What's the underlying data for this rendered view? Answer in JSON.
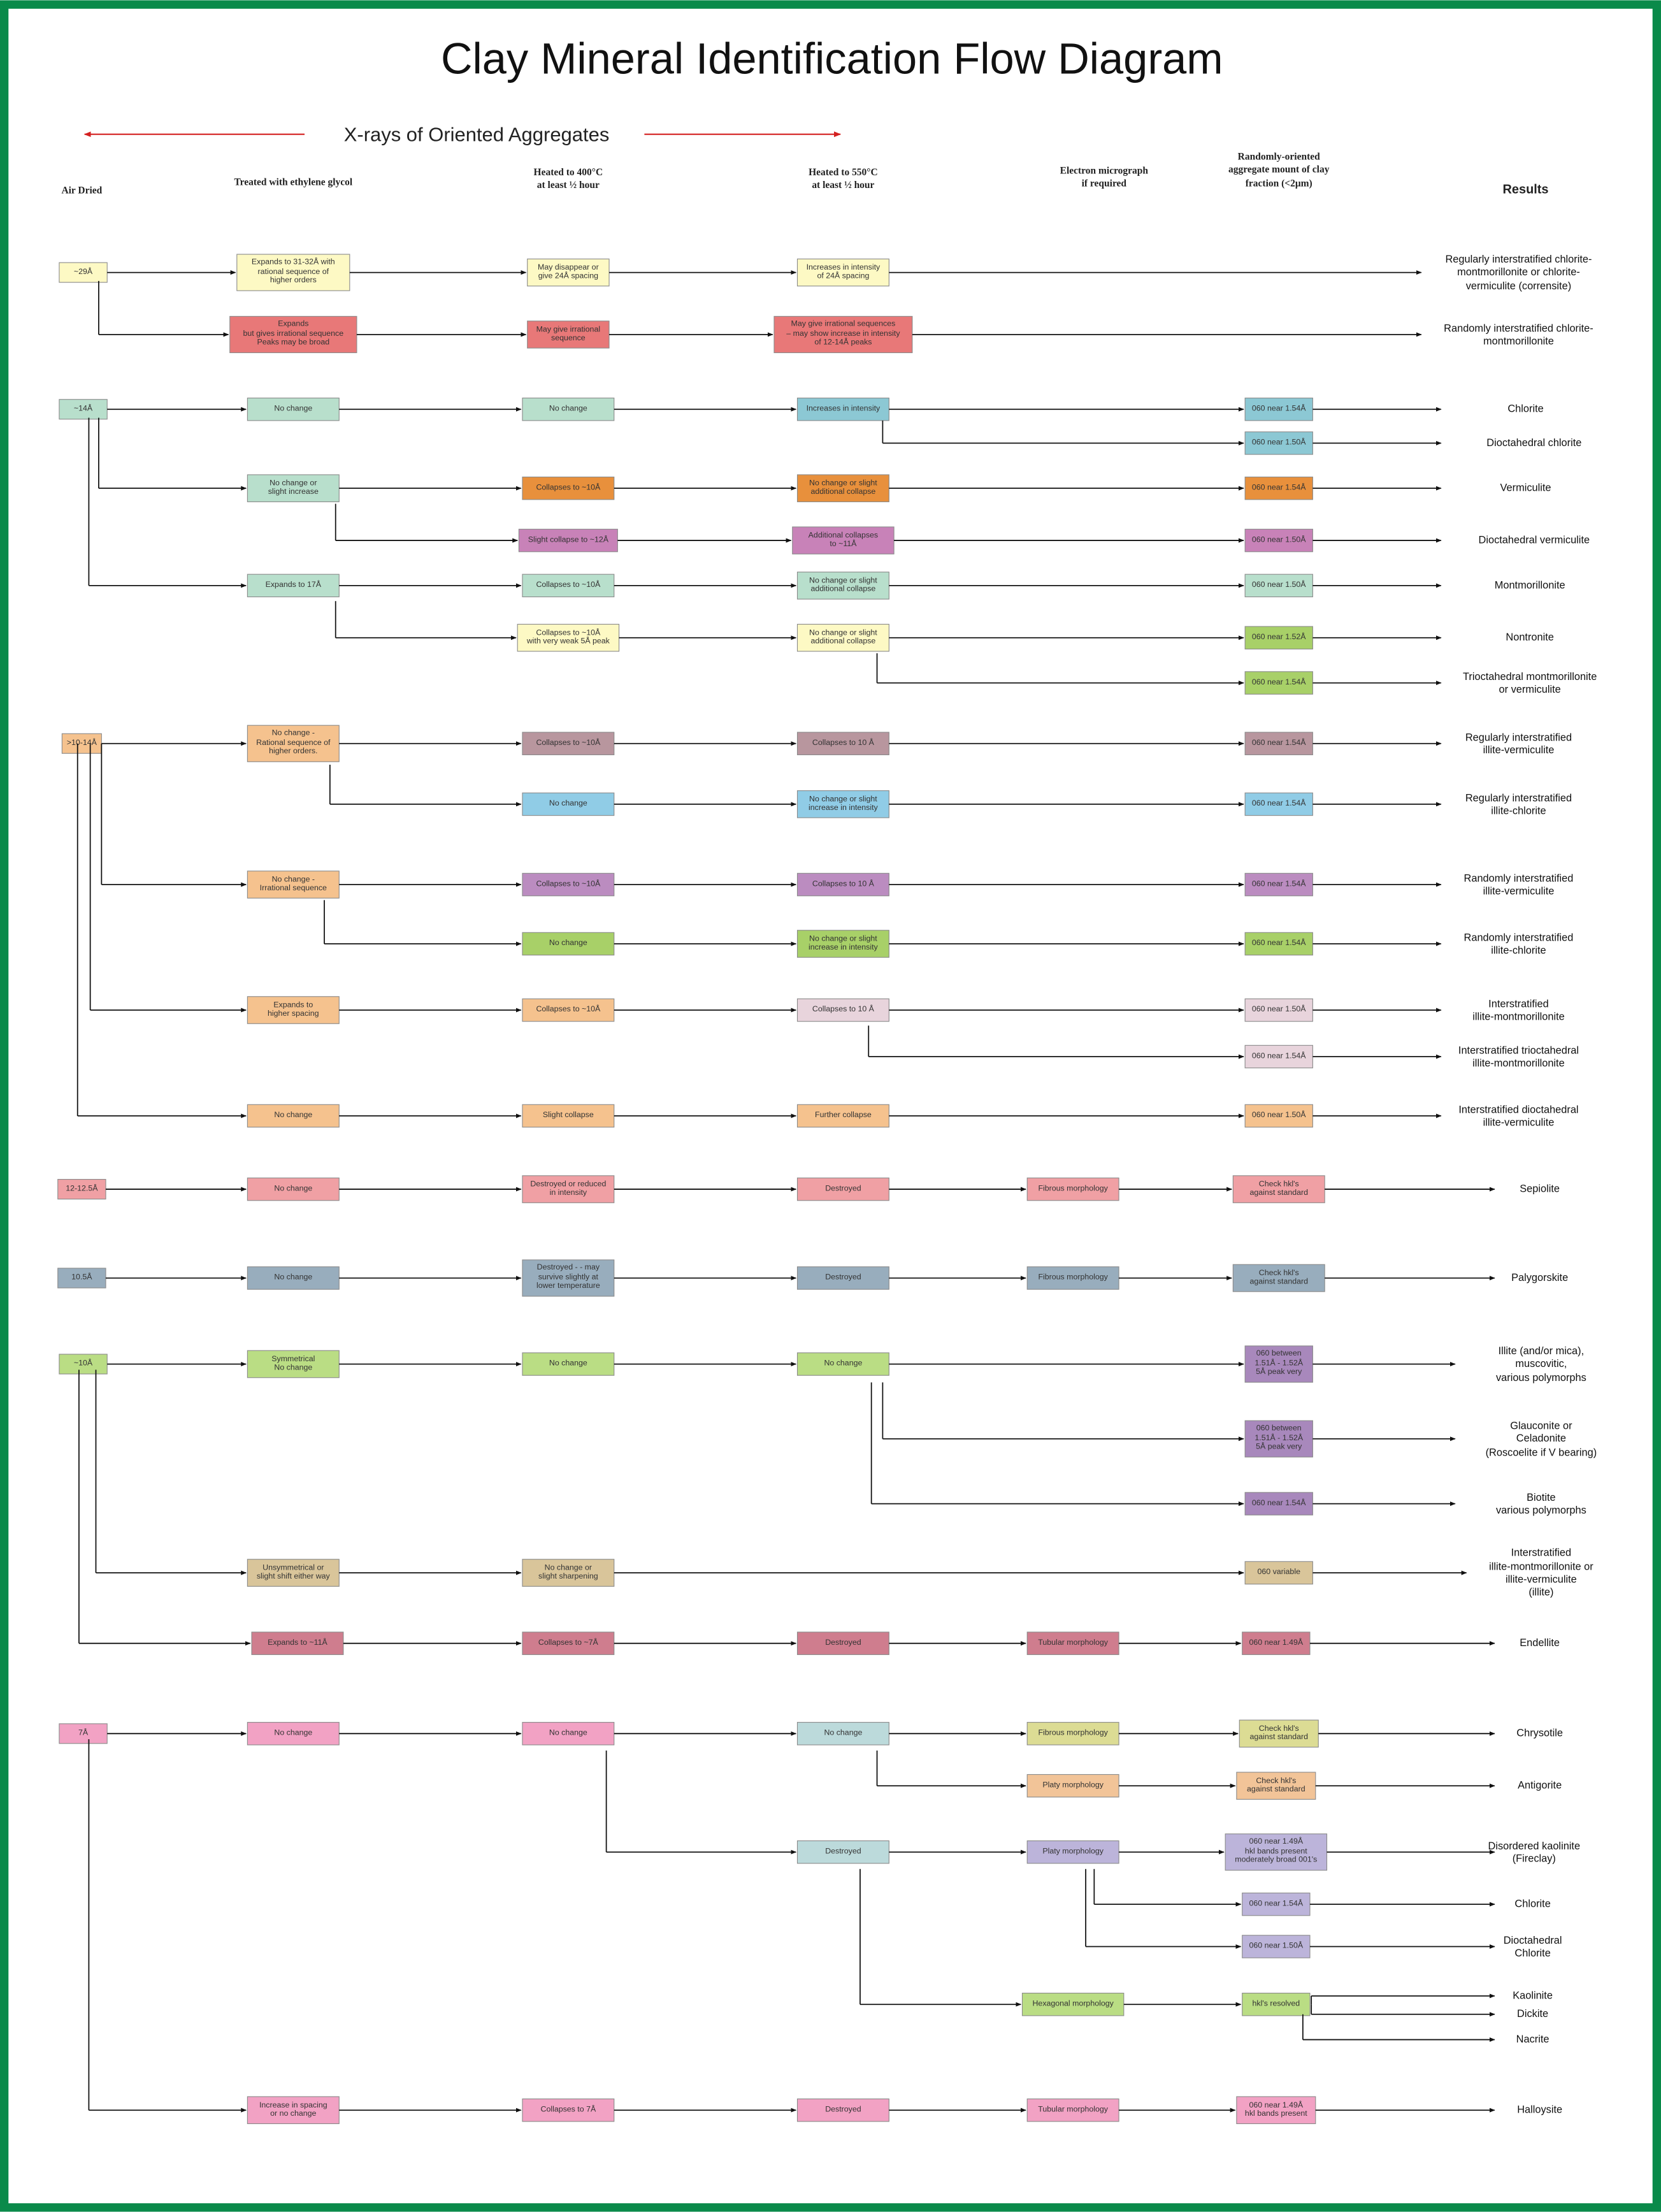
{
  "title": "Clay Mineral Identification Flow Diagram",
  "xray_label": "X-rays of Oriented Aggregates",
  "headers": [
    "Air Dried",
    "Treated with ethylene glycol",
    "Heated to 400°C\nat least ½ hour",
    "Heated to 550°C\nat least ½ hour",
    "Electron micrograph\nif required",
    "Randomly-oriented\naggregate mount of clay\nfraction (<2μm)",
    "Results"
  ],
  "nodes": [
    "~29Å",
    "Expands to 31-32Å with\nrational sequence of\nhigher orders",
    "May disappear or\ngive 24Å spacing",
    "Increases in intensity\nof 24Å spacing",
    "Expands\nbut gives irrational sequence\nPeaks may be broad",
    "May give irrational\nsequence",
    "May give irrational sequences\n– may show increase in intensity\nof 12-14Å peaks",
    "~14Å",
    "No change",
    "No change",
    "Increases in intensity",
    "060 near 1.54Å",
    "060 near 1.50Å",
    "No change or\nslight increase",
    "Collapses to ~10Å",
    "No change or slight\nadditional collapse",
    "060 near 1.54Å",
    "Slight collapse to ~12Å",
    "Additional collapses\nto ~11Å",
    "060 near 1.50Å",
    "Expands to 17Å",
    "Collapses to ~10Å",
    "No change or slight\nadditional collapse",
    "060 near 1.50Å",
    "Collapses to ~10Å\nwith very weak 5Å peak",
    "No change or slight\nadditional collapse",
    "060 near 1.52Å",
    "060 near 1.54Å",
    ">10-14Å",
    "No change -\nRational sequence of\nhigher orders.",
    "Collapses to ~10Å",
    "Collapses to 10 Å",
    "060 near 1.54Å",
    "No change",
    "No change or slight\nincrease in intensity",
    "060 near 1.54Å",
    "No change -\nIrrational sequence",
    "Collapses to ~10Å",
    "Collapses to 10 Å",
    "060 near 1.54Å",
    "No change",
    "No change or slight\nincrease in intensity",
    "060 near 1.54Å",
    "Expands to\nhigher spacing",
    "Collapses to ~10Å",
    "Collapses to 10 Å",
    "060 near 1.50Å",
    "060 near 1.54Å",
    "No change",
    "Slight collapse",
    "Further collapse",
    "060 near 1.50Å",
    "12-12.5Å",
    "No change",
    "Destroyed or reduced\nin intensity",
    "Destroyed",
    "Fibrous morphology",
    "Check hkl's\nagainst standard",
    "10.5Å",
    "No change",
    "Destroyed - - may\nsurvive slightly at\nlower temperature",
    "Destroyed",
    "Fibrous morphology",
    "Check hkl's\nagainst standard",
    "~10Å",
    "Symmetrical\nNo change",
    "No change",
    "No change",
    "060 between\n1.51Å - 1.52Å\n5Å peak very",
    "060 between\n1.51Å - 1.52Å\n5Å peak very",
    "060 near 1.54Å",
    "Unsymmetrical or\nslight shift either way",
    "No change or\nslight sharpening",
    "060 variable",
    "Expands to ~11Å",
    "Collapses to ~7Å",
    "Destroyed",
    "Tubular morphology",
    "060 near 1.49Å",
    "7Å",
    "No change",
    "No change",
    "No change",
    "Fibrous morphology",
    "Check hkl's\nagainst standard",
    "Platy morphology",
    "Check hkl's\nagainst standard",
    "Destroyed",
    "Platy morphology",
    "060 near 1.49Å\nhkl bands present\nmoderately broad 001's",
    "060 near 1.54Å",
    "060 near 1.50Å",
    "Hexagonal morphology",
    "hkl's resolved",
    "Increase in spacing\nor no change",
    "Collapses to 7Å",
    "Destroyed",
    "Tubular morphology",
    "060 near 1.49Å\nhkl bands present"
  ],
  "results": [
    "Regularly interstratified chlorite-\nmontmorillonite or chlorite-\nvermiculite (corrensite)",
    "Randomly interstratified chlorite-\nmontmorillonite",
    "Chlorite",
    "Dioctahedral chlorite",
    "Vermiculite",
    "Dioctahedral vermiculite",
    "Montmorillonite",
    "Nontronite",
    "Trioctahedral montmorillonite\nor vermiculite",
    "Regularly interstratified\nillite-vermiculite",
    "Regularly interstratified\nillite-chlorite",
    "Randomly interstratified\nillite-vermiculite",
    "Randomly interstratified\nillite-chlorite",
    "Interstratified\nillite-montmorillonite",
    "Interstratified trioctahedral\nillite-montmorillonite",
    "Interstratified dioctahedral\nillite-vermiculite",
    "Sepiolite",
    "Palygorskite",
    "Illite (and/or mica),\nmuscovitic,\nvarious polymorphs",
    "Glauconite or\nCeladonite\n(Roscoelite if V bearing)",
    "Biotite\nvarious polymorphs",
    "Interstratified\nillite-montmorillonite or\nillite-vermiculite\n(illite)",
    "Endellite",
    "Chrysotile",
    "Antigorite",
    "Disordered kaolinite\n(Fireclay)",
    "Chlorite",
    "Dioctahedral\nChlorite",
    "Kaolinite",
    "Dickite",
    "Nacrite",
    "Halloysite"
  ]
}
